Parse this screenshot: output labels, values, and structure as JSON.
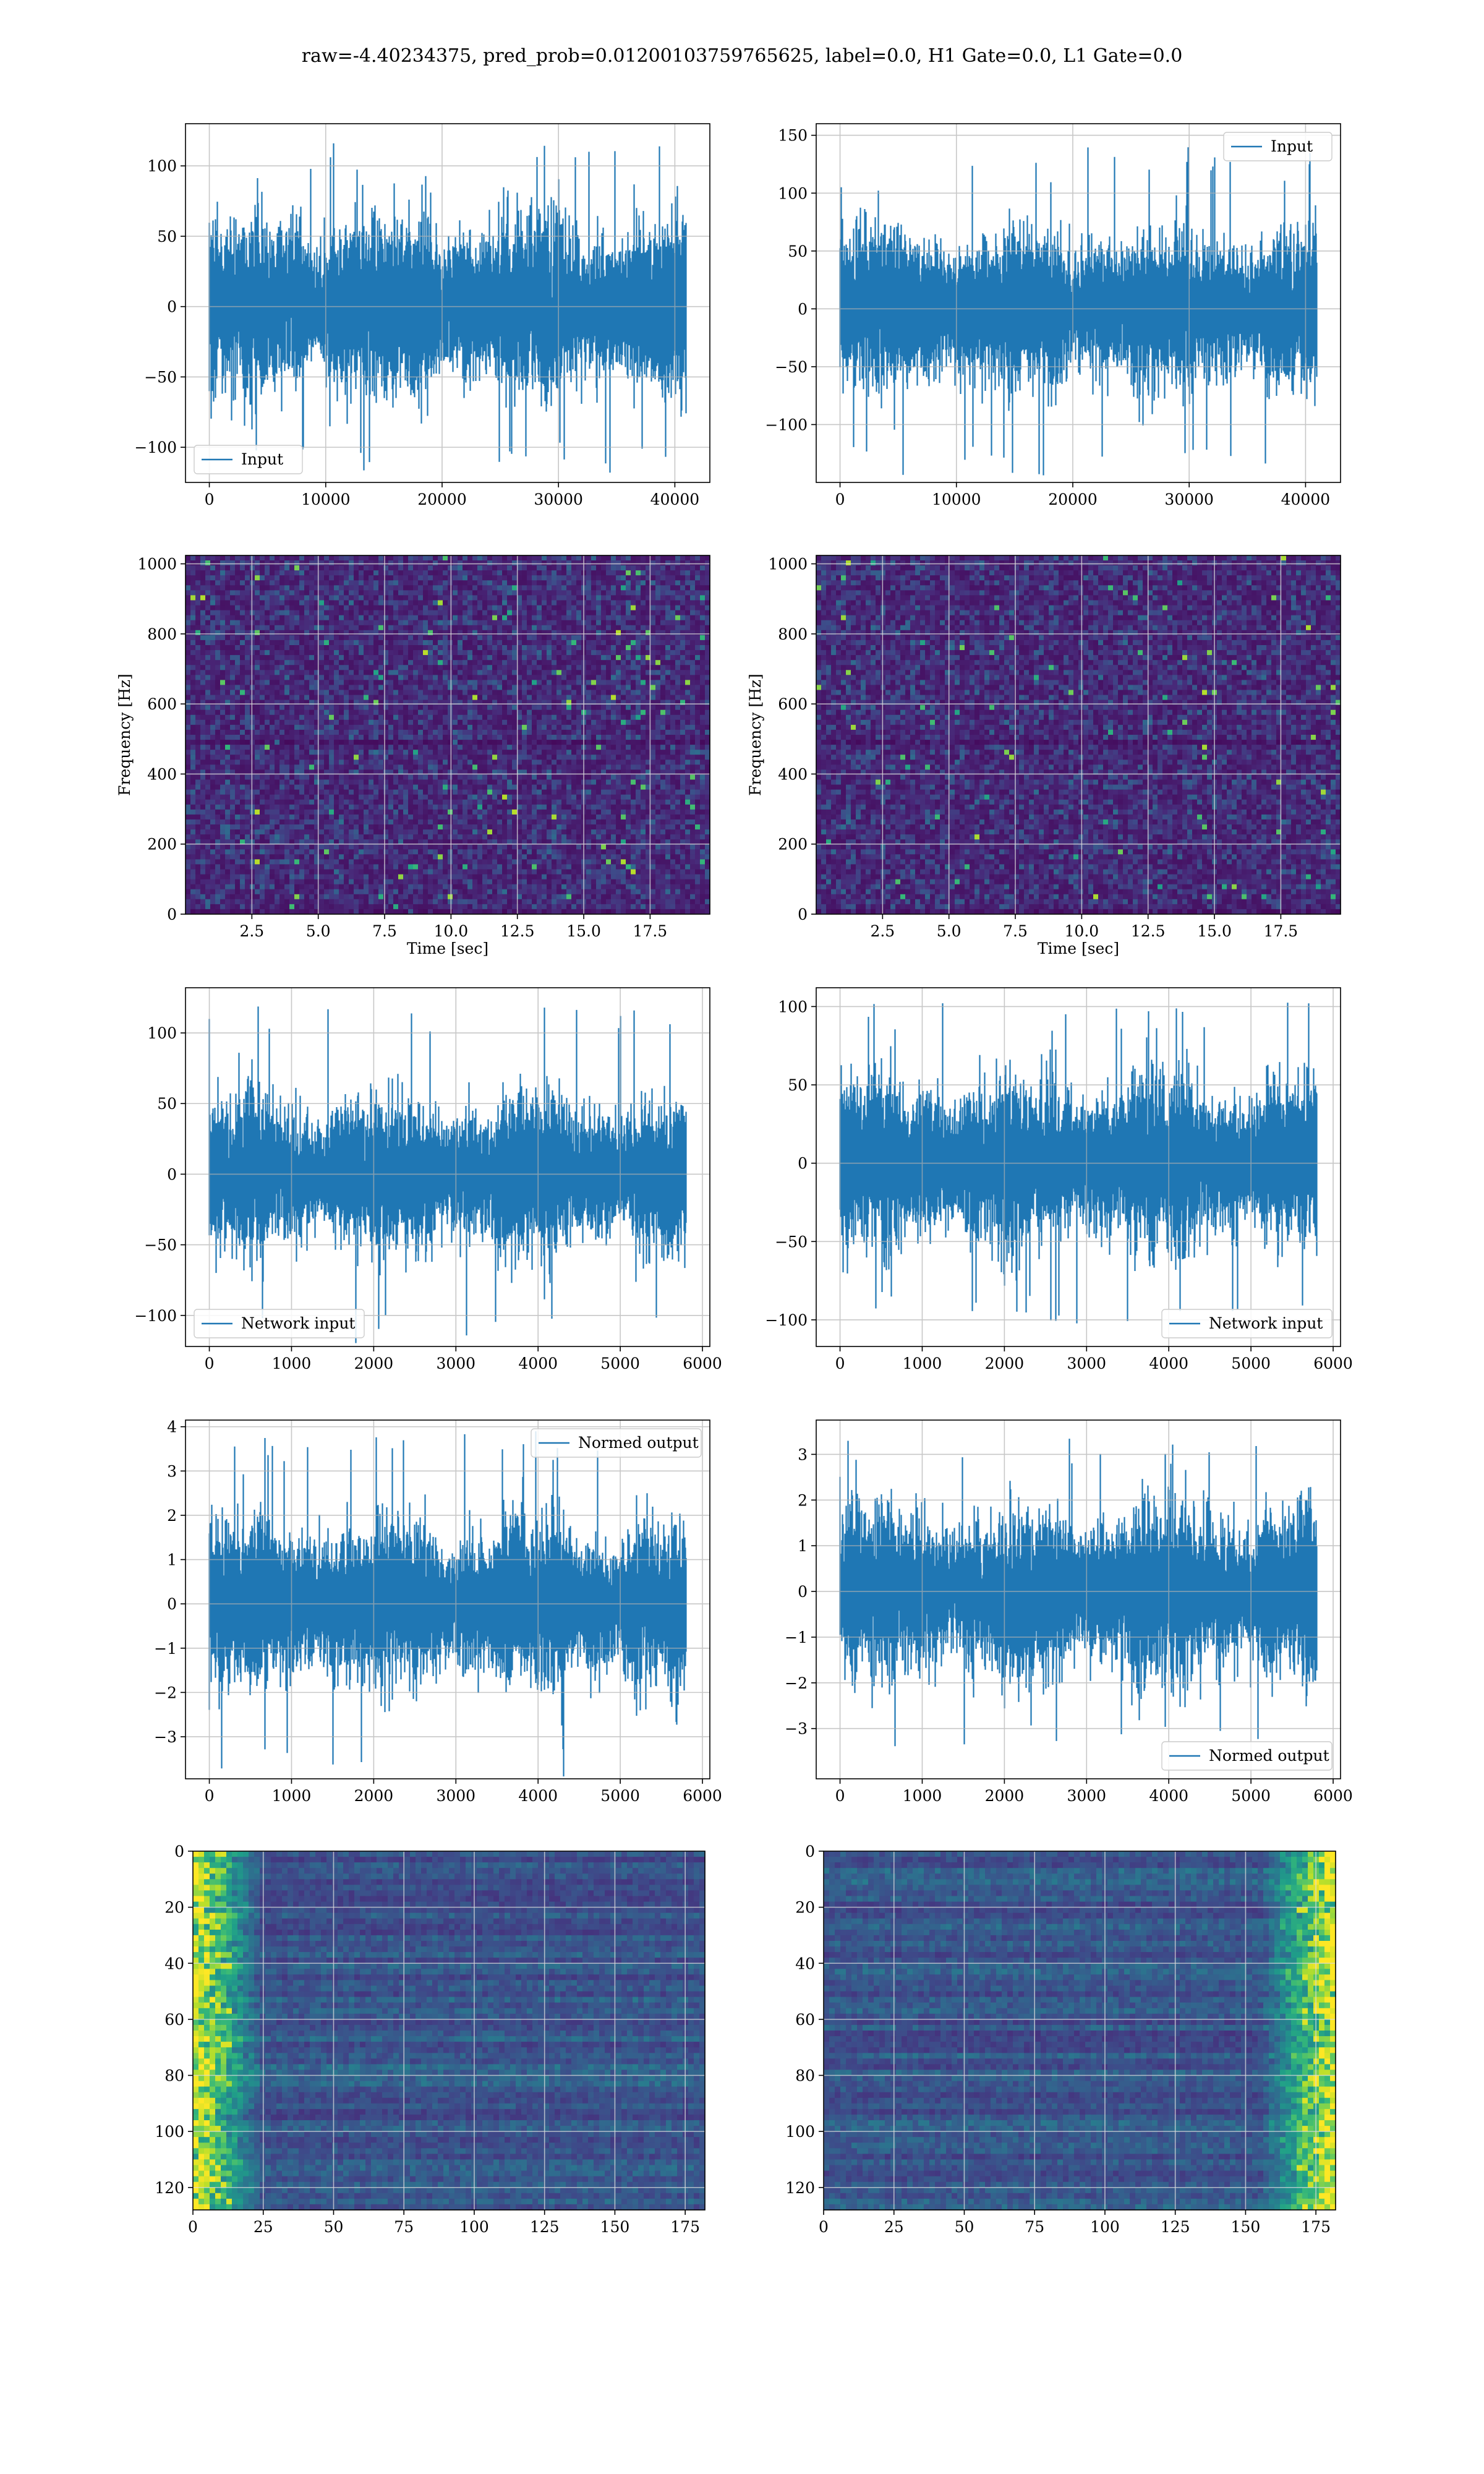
{
  "figure": {
    "title": "raw=-4.40234375, pred_prob=0.01200103759765625, label=0.0, H1 Gate=0.0, L1 Gate=0.0"
  },
  "colors": {
    "line": "#1f77b4",
    "grid": "#b0b0b0",
    "viridis_low": "#440154",
    "viridis_high": "#fde725"
  },
  "chart_data": [
    {
      "id": "input-h1",
      "type": "line",
      "series": [
        {
          "name": "Input",
          "x_range": [
            0,
            40959
          ],
          "amplitude_typical": 65,
          "amplitude_peak": 118
        }
      ],
      "xlim": [
        -2048,
        43007
      ],
      "ylim": [
        -125,
        130
      ],
      "xticks": [
        0,
        10000,
        20000,
        30000,
        40000
      ],
      "yticks": [
        -100,
        -50,
        0,
        50,
        100
      ],
      "xticklabels": [
        "0",
        "10000",
        "20000",
        "30000",
        "40000"
      ],
      "yticklabels": [
        "−100",
        "−50",
        "0",
        "50",
        "100"
      ],
      "legend": "lower-left",
      "grid": true
    },
    {
      "id": "input-l1",
      "type": "line",
      "series": [
        {
          "name": "Input",
          "x_range": [
            0,
            40959
          ],
          "amplitude_typical": 70,
          "amplitude_peak": 145
        }
      ],
      "xlim": [
        -2048,
        43007
      ],
      "ylim": [
        -150,
        160
      ],
      "xticks": [
        0,
        10000,
        20000,
        30000,
        40000
      ],
      "yticks": [
        -100,
        -50,
        0,
        50,
        100,
        150
      ],
      "xticklabels": [
        "0",
        "10000",
        "20000",
        "30000",
        "40000"
      ],
      "yticklabels": [
        "−100",
        "−50",
        "0",
        "50",
        "100",
        "150"
      ],
      "legend": "upper-right",
      "grid": true
    },
    {
      "id": "spec-h1",
      "type": "heatmap",
      "xlabel": "Time [sec]",
      "ylabel": "Frequency [Hz]",
      "xlim": [
        0,
        19.75
      ],
      "ylim": [
        0,
        1024
      ],
      "xticks": [
        2.5,
        5.0,
        7.5,
        10.0,
        12.5,
        15.0,
        17.5
      ],
      "yticks": [
        0,
        200,
        400,
        600,
        800,
        1000
      ],
      "xticklabels": [
        "2.5",
        "5.0",
        "7.5",
        "10.0",
        "12.5",
        "15.0",
        "17.5"
      ],
      "yticklabels": [
        "0",
        "200",
        "400",
        "600",
        "800",
        "1000"
      ],
      "colormap": "viridis",
      "grid": true
    },
    {
      "id": "spec-l1",
      "type": "heatmap",
      "xlabel": "Time [sec]",
      "ylabel": "Frequency [Hz]",
      "xlim": [
        0,
        19.75
      ],
      "ylim": [
        0,
        1024
      ],
      "xticks": [
        2.5,
        5.0,
        7.5,
        10.0,
        12.5,
        15.0,
        17.5
      ],
      "yticks": [
        0,
        200,
        400,
        600,
        800,
        1000
      ],
      "xticklabels": [
        "2.5",
        "5.0",
        "7.5",
        "10.0",
        "12.5",
        "15.0",
        "17.5"
      ],
      "yticklabels": [
        "0",
        "200",
        "400",
        "600",
        "800",
        "1000"
      ],
      "colormap": "viridis",
      "grid": true
    },
    {
      "id": "net-h1",
      "type": "line",
      "series": [
        {
          "name": "Network input",
          "x_range": [
            0,
            5800
          ],
          "amplitude_typical": 55,
          "amplitude_peak": 120
        }
      ],
      "xlim": [
        -290,
        6090
      ],
      "ylim": [
        -122,
        132
      ],
      "xticks": [
        0,
        1000,
        2000,
        3000,
        4000,
        5000,
        6000
      ],
      "yticks": [
        -100,
        -50,
        0,
        50,
        100
      ],
      "xticklabels": [
        "0",
        "1000",
        "2000",
        "3000",
        "4000",
        "5000",
        "6000"
      ],
      "yticklabels": [
        "−100",
        "−50",
        "0",
        "50",
        "100"
      ],
      "legend": "lower-left",
      "grid": true
    },
    {
      "id": "net-l1",
      "type": "line",
      "series": [
        {
          "name": "Network input",
          "x_range": [
            0,
            5800
          ],
          "amplitude_typical": 55,
          "amplitude_peak": 103
        }
      ],
      "xlim": [
        -290,
        6090
      ],
      "ylim": [
        -117,
        112
      ],
      "xticks": [
        0,
        1000,
        2000,
        3000,
        4000,
        5000,
        6000
      ],
      "yticks": [
        -100,
        -50,
        0,
        50,
        100
      ],
      "xticklabels": [
        "0",
        "1000",
        "2000",
        "3000",
        "4000",
        "5000",
        "6000"
      ],
      "yticklabels": [
        "−100",
        "−50",
        "0",
        "50",
        "100"
      ],
      "legend": "lower-right",
      "grid": true
    },
    {
      "id": "norm-h1",
      "type": "line",
      "series": [
        {
          "name": "Normed output",
          "x_range": [
            0,
            5800
          ],
          "amplitude_typical": 1.9,
          "amplitude_peak": 3.9
        }
      ],
      "xlim": [
        -290,
        6090
      ],
      "ylim": [
        -3.95,
        4.15
      ],
      "xticks": [
        0,
        1000,
        2000,
        3000,
        4000,
        5000,
        6000
      ],
      "yticks": [
        -3,
        -2,
        -1,
        0,
        1,
        2,
        3,
        4
      ],
      "xticklabels": [
        "0",
        "1000",
        "2000",
        "3000",
        "4000",
        "5000",
        "6000"
      ],
      "yticklabels": [
        "−3",
        "−2",
        "−1",
        "0",
        "1",
        "2",
        "3",
        "4"
      ],
      "legend": "upper-right",
      "grid": true
    },
    {
      "id": "norm-l1",
      "type": "line",
      "series": [
        {
          "name": "Normed output",
          "x_range": [
            0,
            5800
          ],
          "amplitude_typical": 1.9,
          "amplitude_peak": 3.4
        }
      ],
      "xlim": [
        -290,
        6090
      ],
      "ylim": [
        -4.1,
        3.75
      ],
      "xticks": [
        0,
        1000,
        2000,
        3000,
        4000,
        5000,
        6000
      ],
      "yticks": [
        -3,
        -2,
        -1,
        0,
        1,
        2,
        3
      ],
      "xticklabels": [
        "0",
        "1000",
        "2000",
        "3000",
        "4000",
        "5000",
        "6000"
      ],
      "yticklabels": [
        "−3",
        "−2",
        "−1",
        "0",
        "1",
        "2",
        "3"
      ],
      "legend": "lower-right",
      "grid": true
    },
    {
      "id": "feat-h1",
      "type": "heatmap",
      "xlim": [
        0,
        182
      ],
      "ylim": [
        128,
        0
      ],
      "xticks": [
        0,
        25,
        50,
        75,
        100,
        125,
        150,
        175
      ],
      "yticks": [
        0,
        20,
        40,
        60,
        80,
        100,
        120
      ],
      "xticklabels": [
        "0",
        "25",
        "50",
        "75",
        "100",
        "125",
        "150",
        "175"
      ],
      "yticklabels": [
        "0",
        "20",
        "40",
        "60",
        "80",
        "100",
        "120"
      ],
      "colormap": "viridis",
      "bright_region": "left",
      "grid": true
    },
    {
      "id": "feat-l1",
      "type": "heatmap",
      "xlim": [
        0,
        182
      ],
      "ylim": [
        128,
        0
      ],
      "xticks": [
        0,
        25,
        50,
        75,
        100,
        125,
        150,
        175
      ],
      "yticks": [
        0,
        20,
        40,
        60,
        80,
        100,
        120
      ],
      "xticklabels": [
        "0",
        "25",
        "50",
        "75",
        "100",
        "125",
        "150",
        "175"
      ],
      "yticklabels": [
        "0",
        "20",
        "40",
        "60",
        "80",
        "100",
        "120"
      ],
      "colormap": "viridis",
      "bright_region": "right",
      "grid": true
    }
  ]
}
